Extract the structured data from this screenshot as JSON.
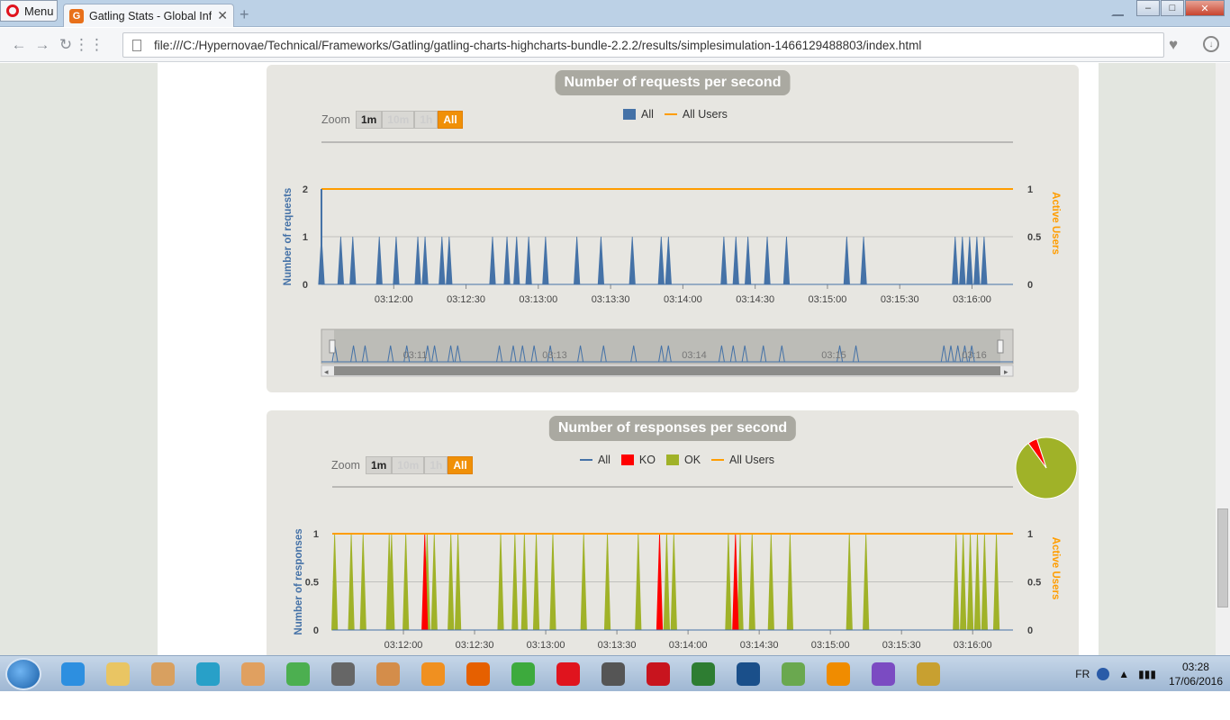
{
  "browser": {
    "menu_label": "Menu",
    "tab_title": "Gatling Stats - Global Infor",
    "tab_favicon": "G",
    "url": "file:///C:/Hypernovae/Technical/Frameworks/Gatling/gatling-charts-highcharts-bundle-2.2.2/results/simplesimulation-1466129488803/index.html",
    "min_glyph": "–",
    "max_glyph": "□",
    "close_glyph": "✕"
  },
  "requests_panel": {
    "title": "Number of requests per second",
    "zoom_label": "Zoom",
    "zoom_buttons": [
      "1m",
      "10m",
      "1h",
      "All"
    ],
    "legend": [
      {
        "label": "All",
        "color": "#4572a7",
        "kind": "box"
      },
      {
        "label": "All Users",
        "color": "#ff9d00",
        "kind": "line"
      }
    ],
    "navigator_labels": [
      "03:11",
      "03:13",
      "03:14",
      "03:15",
      "03:16"
    ]
  },
  "responses_panel": {
    "title": "Number of responses per second",
    "zoom_label": "Zoom",
    "zoom_buttons": [
      "1m",
      "10m",
      "1h",
      "All"
    ],
    "legend": [
      {
        "label": "All",
        "color": "#4572a7",
        "kind": "line"
      },
      {
        "label": "KO",
        "color": "#ff0000",
        "kind": "box"
      },
      {
        "label": "OK",
        "color": "#a0b228",
        "kind": "box"
      },
      {
        "label": "All Users",
        "color": "#ff9d00",
        "kind": "line"
      }
    ]
  },
  "chart_data": [
    {
      "type": "area",
      "title": "Number of requests per second",
      "ylabel": "Number of requests",
      "y2label": "Active Users",
      "ylim": [
        0,
        2
      ],
      "y2lim": [
        0,
        1
      ],
      "y_ticks": [
        "0",
        "1",
        "2"
      ],
      "y2_ticks": [
        "0",
        "0.5",
        "1"
      ],
      "x_ticks": [
        "03:12:00",
        "03:12:30",
        "03:13:00",
        "03:13:30",
        "03:14:00",
        "03:14:30",
        "03:15:00",
        "03:15:30",
        "03:16:00"
      ],
      "x_unit": "seconds after 03:11:30",
      "xlim": [
        0,
        287
      ],
      "series": [
        {
          "name": "All",
          "color": "#4572a7",
          "kind": "spikes",
          "value": 1,
          "x": [
            0,
            8,
            13,
            24,
            31,
            40,
            43,
            50,
            53,
            71,
            77,
            81,
            86,
            93,
            106,
            116,
            129,
            141,
            144,
            167,
            172,
            177,
            185,
            193,
            218,
            225,
            263,
            266,
            269,
            272,
            275
          ]
        },
        {
          "name": "All Users",
          "color": "#ff9d00",
          "kind": "line",
          "axis": "right",
          "value": 1
        }
      ]
    },
    {
      "type": "area",
      "title": "Number of responses per second",
      "ylabel": "Number of responses",
      "y2label": "Active Users",
      "ylim": [
        0,
        1
      ],
      "y2lim": [
        0,
        1
      ],
      "y_ticks": [
        "0",
        "0.5",
        "1"
      ],
      "y2_ticks": [
        "0",
        "0.5",
        "1"
      ],
      "x_ticks": [
        "03:12:00",
        "03:12:30",
        "03:13:00",
        "03:13:30",
        "03:14:00",
        "03:14:30",
        "03:15:00",
        "03:15:30",
        "03:16:00"
      ],
      "x_unit": "seconds after 03:11:30",
      "xlim": [
        0,
        287
      ],
      "series": [
        {
          "name": "OK",
          "color": "#a0b228",
          "kind": "spikes",
          "value": 1,
          "x": [
            1,
            8,
            13,
            24,
            25,
            31,
            40,
            43,
            50,
            53,
            71,
            77,
            81,
            86,
            93,
            106,
            116,
            129,
            141,
            144,
            167,
            172,
            177,
            185,
            193,
            218,
            225,
            263,
            266,
            269,
            272,
            275,
            280
          ]
        },
        {
          "name": "KO",
          "color": "#ff0000",
          "kind": "spikes",
          "value": 1,
          "x": [
            39,
            138,
            170
          ]
        },
        {
          "name": "All Users",
          "color": "#ff9d00",
          "kind": "line",
          "axis": "right",
          "value": 1
        }
      ]
    },
    {
      "type": "pie",
      "slices": [
        {
          "name": "OK",
          "value": 95,
          "color": "#a0b228"
        },
        {
          "name": "KO",
          "value": 5,
          "color": "#ff0000"
        }
      ]
    }
  ],
  "taskbar": {
    "lang": "FR",
    "time": "03:28",
    "date": "17/06/2016",
    "apps": [
      {
        "name": "ie-icon",
        "color": "#2d8fe0"
      },
      {
        "name": "explorer-icon",
        "color": "#e9c563"
      },
      {
        "name": "mail-icon",
        "color": "#d8a060"
      },
      {
        "name": "circle-app-icon",
        "color": "#28a0c8"
      },
      {
        "name": "java-icon",
        "color": "#e0a060"
      },
      {
        "name": "chrome-icon",
        "color": "#4caf50"
      },
      {
        "name": "scanner-icon",
        "color": "#666666"
      },
      {
        "name": "paint-icon",
        "color": "#d48d4a"
      },
      {
        "name": "media-icon",
        "color": "#f09020"
      },
      {
        "name": "firefox-icon",
        "color": "#e66000"
      },
      {
        "name": "green-app-icon",
        "color": "#3daa3d"
      },
      {
        "name": "opera-icon",
        "color": "#e0141e"
      },
      {
        "name": "bookmark-app-icon",
        "color": "#555555"
      },
      {
        "name": "acrobat-icon",
        "color": "#c8141e"
      },
      {
        "name": "chart-app-icon",
        "color": "#2e7d32"
      },
      {
        "name": "player-icon",
        "color": "#1a4f8a"
      },
      {
        "name": "plane-app-icon",
        "color": "#6aa84f"
      },
      {
        "name": "vlc-icon",
        "color": "#f08c00"
      },
      {
        "name": "cat-app-icon",
        "color": "#7b4bc2"
      },
      {
        "name": "bird-app-icon",
        "color": "#c8a030"
      }
    ]
  }
}
